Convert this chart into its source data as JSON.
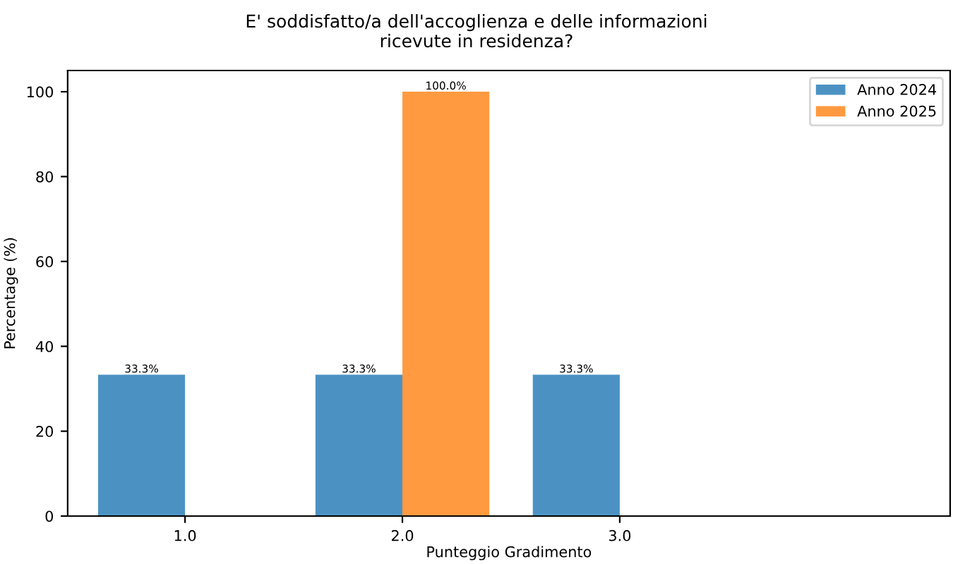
{
  "chart_data": {
    "type": "bar",
    "title": "E' soddisfatto/a dell'accoglienza e delle informazioni\nricevute in residenza?",
    "xlabel": "Punteggio Gradimento",
    "ylabel": "Percentage (%)",
    "categories": [
      "1.0",
      "2.0",
      "3.0"
    ],
    "series": [
      {
        "name": "Anno 2024",
        "color": "#4b92c3",
        "values": [
          33.3,
          33.3,
          33.3
        ],
        "value_labels": [
          "33.3%",
          "33.3%",
          "33.3%"
        ]
      },
      {
        "name": "Anno 2025",
        "color": "#ff9a40",
        "values": [
          null,
          100.0,
          null
        ],
        "value_labels": [
          null,
          "100.0%",
          null
        ]
      }
    ],
    "ylim": [
      0,
      105
    ],
    "yticks": [
      0,
      20,
      40,
      60,
      80,
      100
    ],
    "grid": false,
    "legend": "top right"
  }
}
